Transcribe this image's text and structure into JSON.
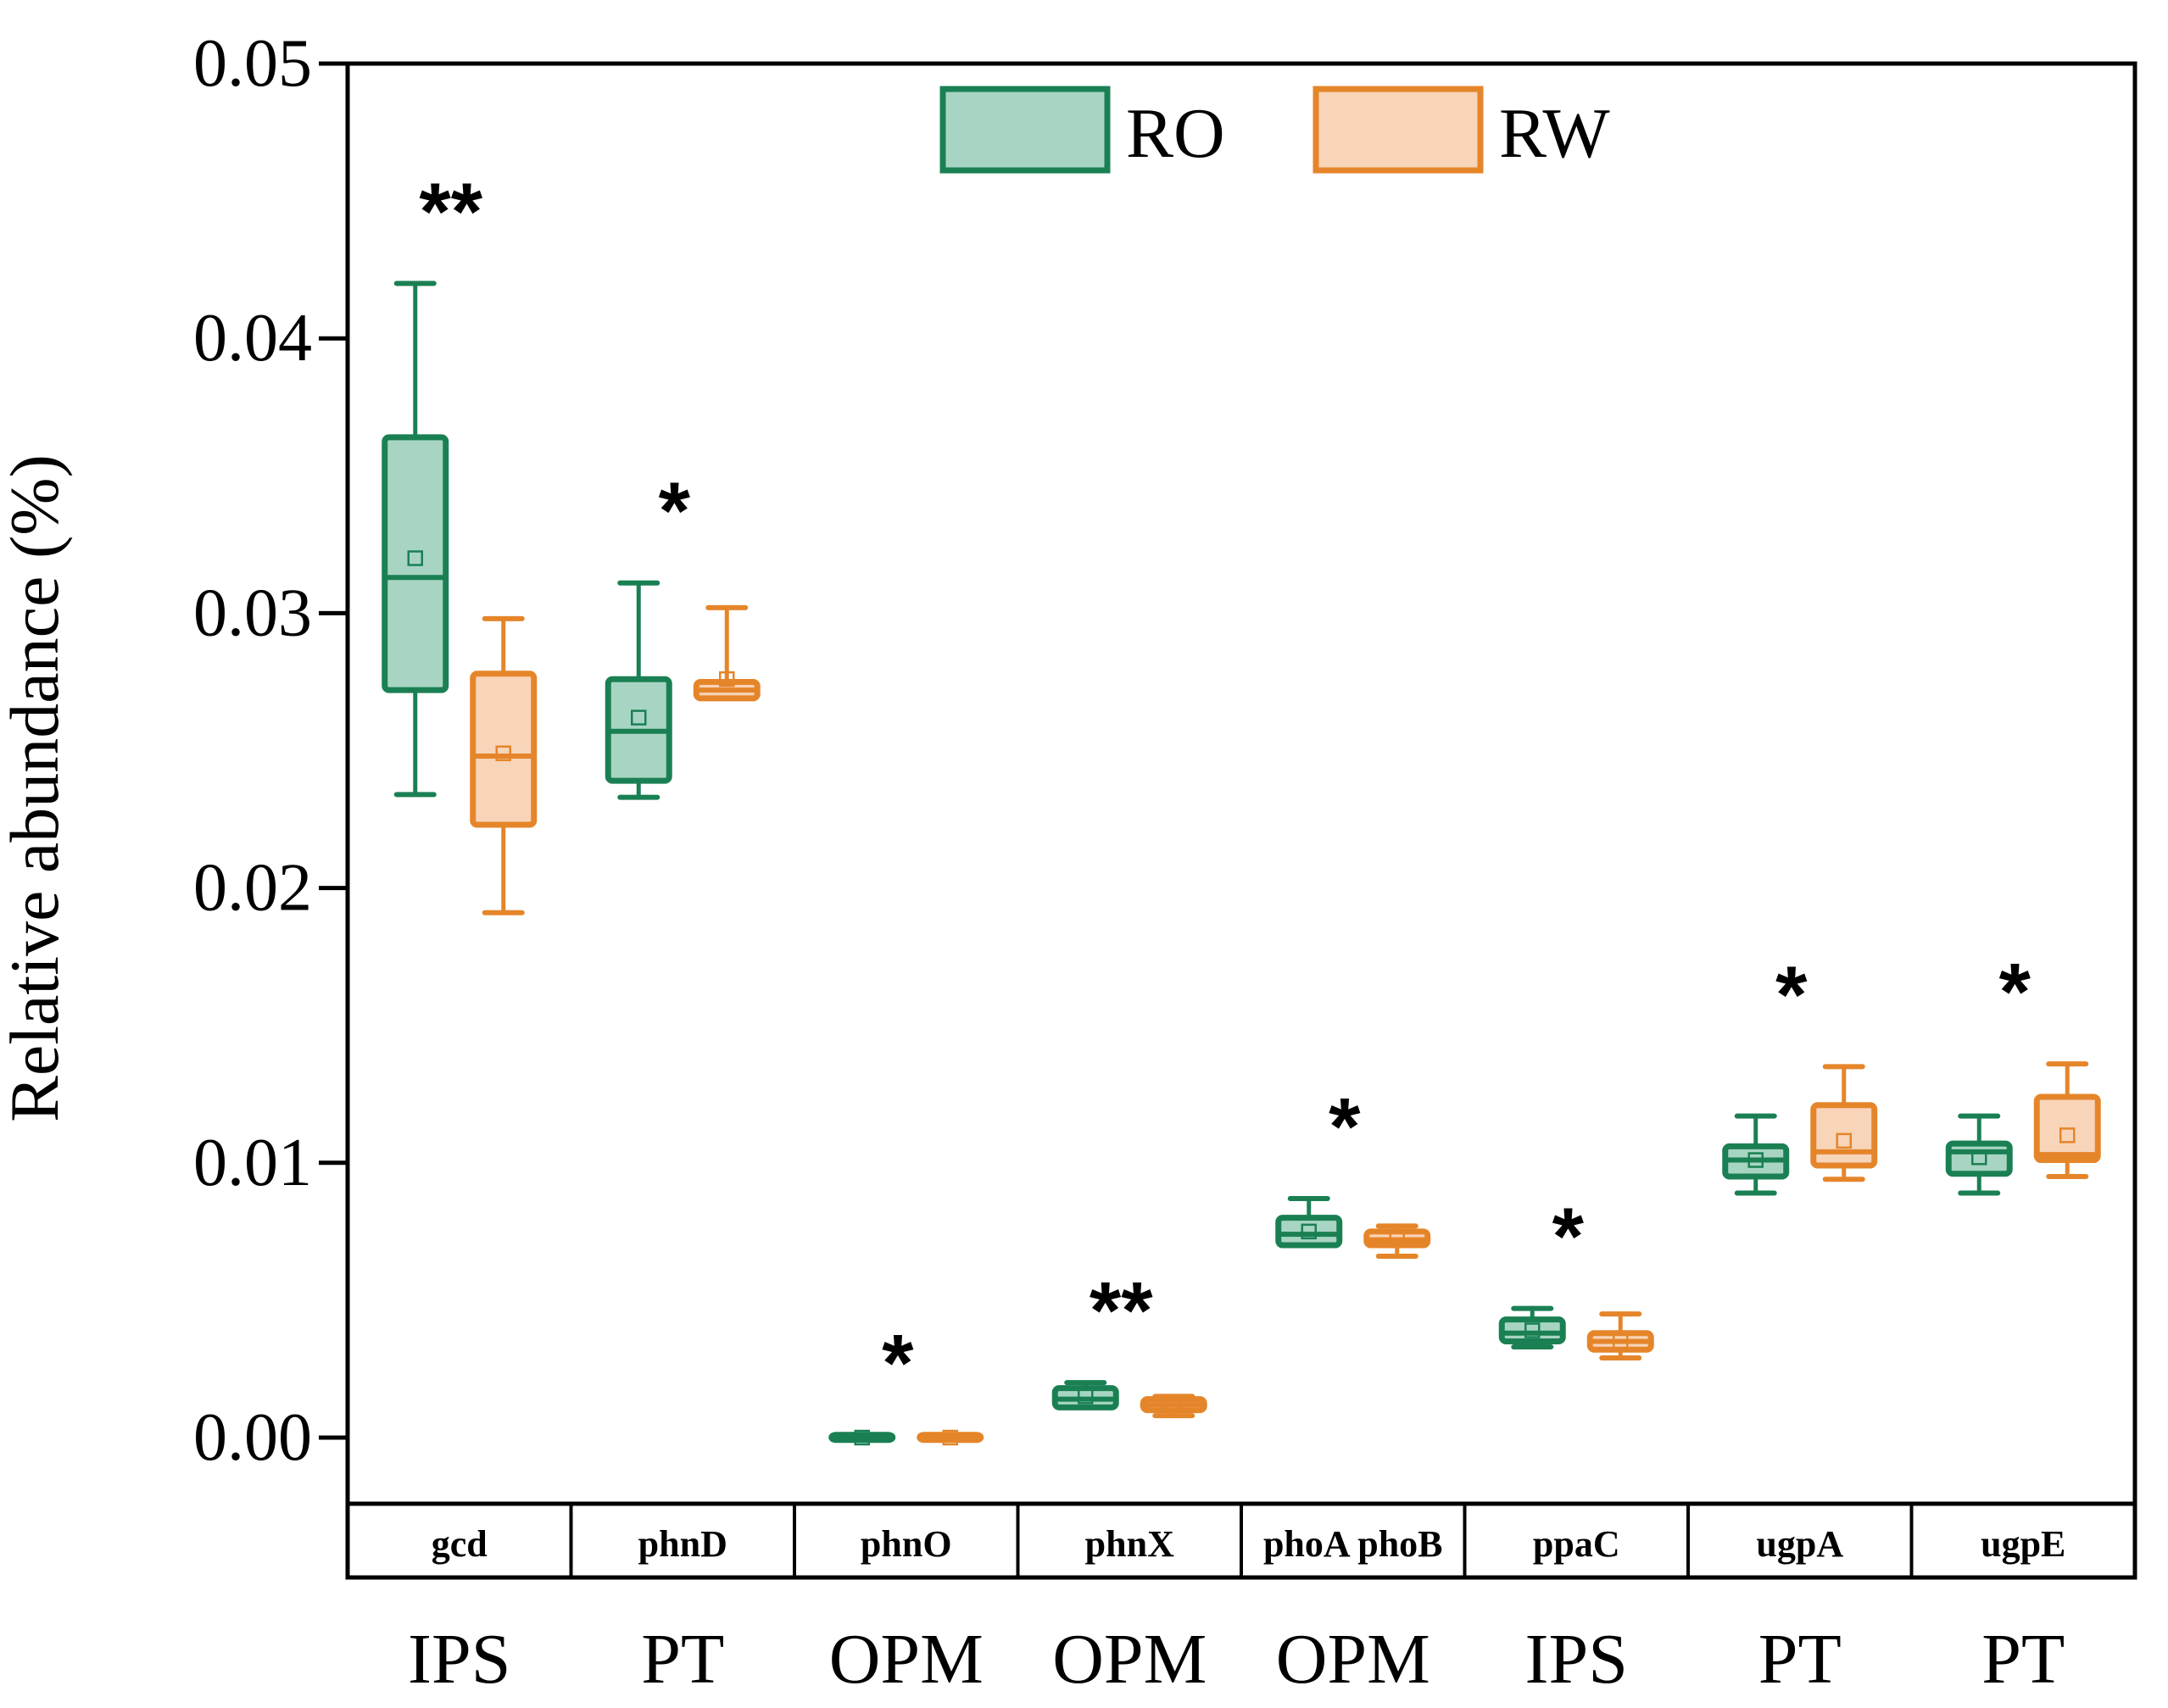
{
  "chart_data": {
    "type": "box",
    "ylabel": "Relative abundance (%)",
    "ylim": [
      -0.0025,
      0.05
    ],
    "yticks": [
      0.0,
      0.01,
      0.02,
      0.03,
      0.04,
      0.05
    ],
    "ytick_labels": [
      "0.00",
      "0.01",
      "0.02",
      "0.03",
      "0.04",
      "0.05"
    ],
    "legend": {
      "placement": "top-center",
      "entries": [
        {
          "name": "RO",
          "edge": "#1a8053",
          "fill": "#a8d5c3"
        },
        {
          "name": "RW",
          "edge": "#e5852a",
          "fill": "#f8d4b8"
        }
      ]
    },
    "categories": [
      {
        "gene": "gcd",
        "group": "IPS",
        "significance": "**",
        "RO": {
          "min": 0.0234,
          "q1": 0.0272,
          "median": 0.0313,
          "q3": 0.0364,
          "max": 0.042,
          "mean": 0.032
        },
        "RW": {
          "min": 0.0191,
          "q1": 0.0223,
          "median": 0.0248,
          "q3": 0.0278,
          "max": 0.0298,
          "mean": 0.0249
        }
      },
      {
        "gene": "phnD",
        "group": "PT",
        "significance": "*",
        "RO": {
          "min": 0.0233,
          "q1": 0.0239,
          "median": 0.0257,
          "q3": 0.0276,
          "max": 0.0311,
          "mean": 0.0262
        },
        "RW": {
          "min": 0.0269,
          "q1": 0.0269,
          "median": 0.0272,
          "q3": 0.0275,
          "max": 0.0302,
          "mean": 0.0276
        }
      },
      {
        "gene": "phnO",
        "group": "OPM",
        "significance": "*",
        "RO": {
          "min": 0.0,
          "q1": 0.0,
          "median": 0.0,
          "q3": 0.0001,
          "max": 0.0001,
          "mean": 0.0
        },
        "RW": {
          "min": 0.0,
          "q1": 0.0,
          "median": 0.0,
          "q3": 0.0001,
          "max": 0.0001,
          "mean": 0.0
        }
      },
      {
        "gene": "phnX",
        "group": "OPM",
        "significance": "**",
        "RO": {
          "min": 0.0011,
          "q1": 0.0011,
          "median": 0.0014,
          "q3": 0.0018,
          "max": 0.002,
          "mean": 0.0015
        },
        "RW": {
          "min": 0.0008,
          "q1": 0.001,
          "median": 0.0012,
          "q3": 0.0014,
          "max": 0.0015,
          "mean": 0.0012
        }
      },
      {
        "gene": "phoA phoB",
        "group": "OPM",
        "significance": "*",
        "RO": {
          "min": 0.007,
          "q1": 0.007,
          "median": 0.0074,
          "q3": 0.008,
          "max": 0.0087,
          "mean": 0.0075
        },
        "RW": {
          "min": 0.0066,
          "q1": 0.007,
          "median": 0.0072,
          "q3": 0.0075,
          "max": 0.0077,
          "mean": 0.0072
        }
      },
      {
        "gene": "ppaC",
        "group": "IPS",
        "significance": "*",
        "RO": {
          "min": 0.0033,
          "q1": 0.0035,
          "median": 0.0038,
          "q3": 0.0043,
          "max": 0.0047,
          "mean": 0.0039
        },
        "RW": {
          "min": 0.0029,
          "q1": 0.0032,
          "median": 0.0035,
          "q3": 0.0038,
          "max": 0.0045,
          "mean": 0.0035
        }
      },
      {
        "gene": "ugpA",
        "group": "PT",
        "significance": "*",
        "RO": {
          "min": 0.0089,
          "q1": 0.0095,
          "median": 0.0101,
          "q3": 0.0106,
          "max": 0.0117,
          "mean": 0.0101
        },
        "RW": {
          "min": 0.0094,
          "q1": 0.0099,
          "median": 0.0104,
          "q3": 0.0121,
          "max": 0.0135,
          "mean": 0.0108
        }
      },
      {
        "gene": "ugpE",
        "group": "PT",
        "significance": "*",
        "RO": {
          "min": 0.0089,
          "q1": 0.0096,
          "median": 0.0104,
          "q3": 0.0107,
          "max": 0.0117,
          "mean": 0.0102
        },
        "RW": {
          "min": 0.0095,
          "q1": 0.0101,
          "median": 0.0103,
          "q3": 0.0124,
          "max": 0.0136,
          "mean": 0.011
        }
      }
    ]
  }
}
